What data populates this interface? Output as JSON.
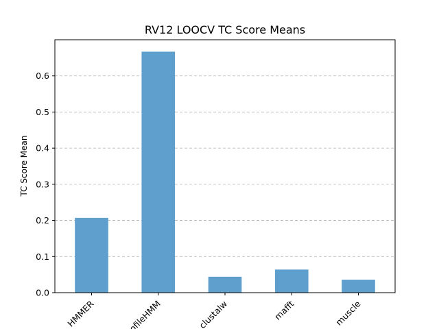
{
  "chart_data": {
    "type": "bar",
    "title": "RV12 LOOCV TC Score Means",
    "xlabel": "",
    "ylabel": "TC Score Mean",
    "categories": [
      "HMMER",
      "ProfileHMM",
      "clustalw",
      "mafft",
      "muscle"
    ],
    "values": [
      0.207,
      0.667,
      0.044,
      0.064,
      0.036
    ],
    "ylim": [
      0,
      0.7
    ],
    "yticks": [
      "0.0",
      "0.1",
      "0.2",
      "0.3",
      "0.4",
      "0.5",
      "0.6"
    ],
    "grid": true,
    "bar_color": "#5f9fcd"
  }
}
